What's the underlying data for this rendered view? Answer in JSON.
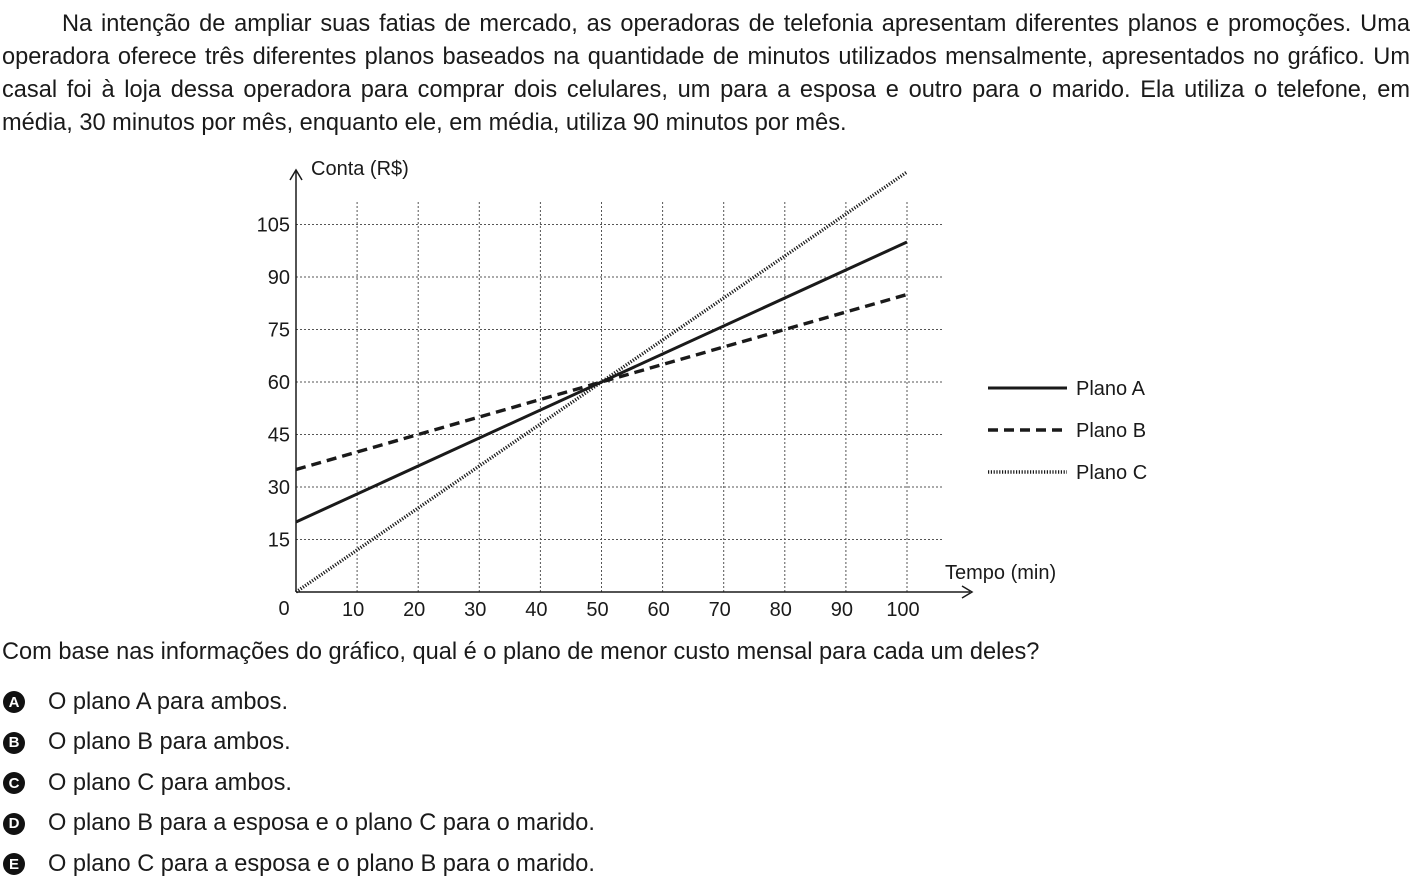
{
  "question": {
    "intro": "Na intenção de ampliar suas fatias de mercado, as operadoras de telefonia apresentam diferentes planos e promoções. Uma operadora oferece três diferentes planos baseados na quantidade de minutos utilizados mensalmente, apresentados no gráfico. Um casal foi à loja dessa operadora para comprar dois celulares, um para a esposa e outro para o marido. Ela utiliza o telefone, em média, 30 minutos por mês, enquanto ele, em média, utiliza 90 minutos por mês.",
    "prompt": "Com base nas informações do gráfico, qual é o plano de menor custo mensal para cada um deles?",
    "options": [
      {
        "letter": "A",
        "text": "O plano A para ambos."
      },
      {
        "letter": "B",
        "text": "O plano B para ambos."
      },
      {
        "letter": "C",
        "text": "O plano C para ambos."
      },
      {
        "letter": "D",
        "text": "O plano B para a esposa e o plano C para o marido."
      },
      {
        "letter": "E",
        "text": "O plano C para a esposa e o plano B para o marido."
      }
    ]
  },
  "chart_data": {
    "type": "line",
    "xlabel": "Tempo (min)",
    "ylabel": "Conta (R$)",
    "origin_label": "0",
    "xlim": [
      0,
      100
    ],
    "ylim": [
      0,
      105
    ],
    "x_ticks": [
      10,
      20,
      30,
      40,
      50,
      60,
      70,
      80,
      90,
      100
    ],
    "y_ticks": [
      15,
      30,
      45,
      60,
      75,
      90,
      105
    ],
    "grid": true,
    "legend_position": "right",
    "series": [
      {
        "name": "Plano A",
        "style": "solid",
        "x": [
          0,
          100
        ],
        "y": [
          20,
          100
        ]
      },
      {
        "name": "Plano B",
        "style": "dashed",
        "x": [
          0,
          100
        ],
        "y": [
          35,
          85
        ]
      },
      {
        "name": "Plano C",
        "style": "dotted",
        "x": [
          0,
          100
        ],
        "y": [
          0,
          120
        ]
      }
    ]
  }
}
